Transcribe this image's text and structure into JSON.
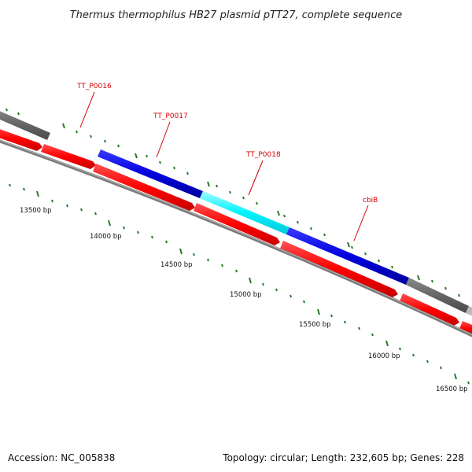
{
  "title": "Thermus thermophilus HB27 plasmid pTT27, complete sequence",
  "accession": "Accession: NC_005838",
  "topology": "Topology: circular; Length: 232,605 bp; Genes: 228",
  "colors": {
    "forward_gene": "#ff0000",
    "highlight_gene": "#0000dd",
    "selected_gene": "#00ffff",
    "other_gene": "#666666",
    "backbone": "#8a8a8a",
    "tick": "#2a7a2a",
    "label": "#d40000"
  },
  "position_labels": [
    "13500 bp",
    "14000 bp",
    "14500 bp",
    "15000 bp",
    "15500 bp",
    "16000 bp",
    "16500 bp"
  ],
  "gene_labels": [
    {
      "name": "TT_P0016"
    },
    {
      "name": "TT_P0017"
    },
    {
      "name": "TT_P0018"
    },
    {
      "name": "cbiB"
    }
  ]
}
